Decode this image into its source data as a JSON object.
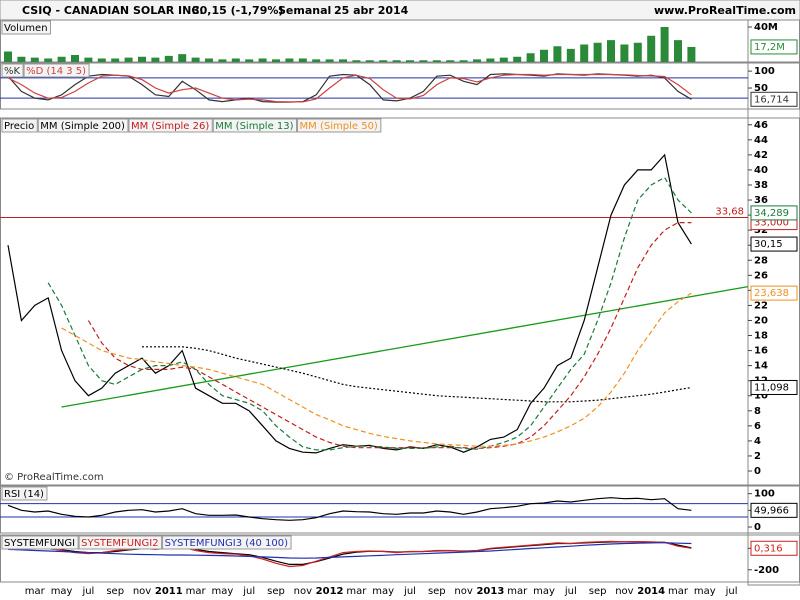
{
  "header": {
    "title": "CSIQ - CANADIAN SOLAR INC.",
    "quote": "30,15 (-1,79%)",
    "period": "Semanal",
    "date": "25 abr 2014",
    "site": "www.ProRealTime.com"
  },
  "chart_data": [
    {
      "type": "bar",
      "title": "Volumen",
      "ylim": [
        0,
        48000000
      ],
      "yticks": [
        {
          "value": 40000000,
          "label": "40M"
        }
      ],
      "series": [
        {
          "name": "Volumen",
          "color": "#2a8a3a",
          "tag": {
            "value": 17200000,
            "label": "17,2M"
          },
          "values": [
            12000000,
            6000000,
            5000000,
            4000000,
            6000000,
            8000000,
            5000000,
            4000000,
            4000000,
            5000000,
            6000000,
            5000000,
            7000000,
            9000000,
            5000000,
            4000000,
            3000000,
            4000000,
            3000000,
            4000000,
            3000000,
            4000000,
            4000000,
            3000000,
            3000000,
            3000000,
            2000000,
            2000000,
            2000000,
            2000000,
            2000000,
            2000000,
            2000000,
            2000000,
            2000000,
            3000000,
            4000000,
            5000000,
            6000000,
            10000000,
            14000000,
            18000000,
            15000000,
            20000000,
            22000000,
            25000000,
            20000000,
            22000000,
            30000000,
            40000000,
            25000000,
            17200000,
            null,
            null,
            null
          ]
        }
      ]
    },
    {
      "type": "line",
      "ylim": [
        -12,
        124
      ],
      "yticks": [
        100,
        50
      ],
      "levels": [
        80,
        20
      ],
      "level_color": "#2233aa",
      "series": [
        {
          "name": "%K",
          "color": "#333333",
          "tag": {
            "value": 16.714,
            "label": "16,714"
          },
          "values": [
            85,
            40,
            20,
            15,
            30,
            60,
            85,
            90,
            88,
            85,
            60,
            30,
            25,
            70,
            45,
            15,
            10,
            15,
            20,
            10,
            8,
            8,
            10,
            30,
            85,
            90,
            88,
            60,
            15,
            12,
            20,
            40,
            85,
            88,
            70,
            60,
            90,
            92,
            90,
            88,
            85,
            92,
            90,
            88,
            92,
            90,
            88,
            85,
            88,
            80,
            40,
            16.714,
            null,
            null,
            null
          ]
        },
        {
          "name": "%D (14 3 5)",
          "color": "#d04040",
          "values": [
            80,
            60,
            35,
            20,
            22,
            40,
            65,
            85,
            88,
            86,
            75,
            50,
            35,
            45,
            50,
            35,
            20,
            15,
            17,
            15,
            10,
            9,
            9,
            18,
            50,
            80,
            88,
            78,
            45,
            20,
            18,
            28,
            60,
            80,
            78,
            68,
            80,
            88,
            90,
            90,
            88,
            90,
            90,
            90,
            90,
            90,
            89,
            87,
            86,
            84,
            60,
            30,
            null,
            null,
            null
          ]
        }
      ]
    },
    {
      "type": "line",
      "ylim": [
        -1.86,
        46.9
      ],
      "yticks": [
        0,
        2,
        4,
        6,
        8,
        10,
        12,
        14,
        16,
        18,
        20,
        22,
        24,
        26,
        28,
        30,
        32,
        34,
        36,
        38,
        40,
        42,
        44,
        46
      ],
      "categories": [
        null,
        null,
        "mar",
        null,
        "may",
        null,
        "jul",
        null,
        "sep",
        null,
        "nov",
        null,
        "2011",
        null,
        "mar",
        null,
        "may",
        null,
        "jul",
        null,
        "sep",
        null,
        "nov",
        null,
        "2012",
        null,
        "mar",
        null,
        "may",
        null,
        "jul",
        null,
        "sep",
        null,
        "nov",
        null,
        "2013",
        null,
        "mar",
        null,
        "may",
        null,
        "jul",
        null,
        "sep",
        null,
        "nov",
        null,
        "2014",
        null,
        "mar",
        null,
        "may",
        null,
        "jul"
      ],
      "level": {
        "value": 33.68,
        "label": "33,68",
        "color": "#c02020"
      },
      "trendline": {
        "from": 8.5,
        "to": 24.5,
        "color": "#1a9a1a"
      },
      "watermark": "© ProRealTime.com",
      "series": [
        {
          "name": "Precio",
          "color": "#000000",
          "style": "solid",
          "tag": {
            "value": 30.15,
            "label": "30,15"
          },
          "values": [
            30,
            20,
            22,
            23,
            16,
            12,
            10,
            11,
            13,
            14,
            15,
            13,
            14,
            16,
            11,
            10,
            9,
            9,
            8,
            6,
            4,
            3,
            2.5,
            2.4,
            3,
            3.5,
            3.3,
            3.4,
            3,
            2.8,
            3.2,
            3,
            3.5,
            3.2,
            2.5,
            3.2,
            4.2,
            4.5,
            5.5,
            9,
            11,
            14,
            15,
            20,
            27,
            34,
            38,
            40,
            40,
            42,
            33,
            30.15,
            null,
            null,
            null
          ]
        },
        {
          "name": "MM (Simple 200)",
          "color": "#000000",
          "style": "dotted",
          "tag": {
            "value": 11.098,
            "label": "11,098"
          },
          "values": [
            null,
            null,
            null,
            null,
            null,
            null,
            null,
            null,
            null,
            null,
            16.5,
            16.5,
            16.5,
            16.5,
            16.3,
            16,
            15.5,
            15,
            14.6,
            14.2,
            13.8,
            13.4,
            13,
            12.5,
            12,
            11.5,
            11.2,
            11,
            10.8,
            10.6,
            10.4,
            10.2,
            10,
            9.9,
            9.8,
            9.7,
            9.6,
            9.5,
            9.4,
            9.3,
            9.2,
            9.2,
            9.2,
            9.3,
            9.4,
            9.6,
            9.8,
            10,
            10.2,
            10.5,
            10.8,
            11.098,
            null,
            null,
            null
          ]
        },
        {
          "name": "MM (Simple 26)",
          "color": "#c02020",
          "style": "dashed",
          "tag": {
            "value": 33,
            "label": "33,000"
          },
          "values": [
            null,
            null,
            null,
            null,
            null,
            null,
            20,
            17,
            15,
            14,
            13.5,
            13.5,
            13.5,
            13.8,
            13.5,
            12.5,
            11.5,
            10.5,
            9.5,
            8.5,
            7.5,
            6.5,
            5.5,
            4.5,
            3.8,
            3.3,
            3.1,
            3.1,
            3.1,
            3.1,
            3.1,
            3.1,
            3.1,
            3.1,
            3.1,
            3,
            3.1,
            3.3,
            3.6,
            4.5,
            6,
            8,
            10,
            12.5,
            15.5,
            19,
            23,
            27,
            30,
            32,
            33,
            33,
            null,
            null,
            null
          ]
        },
        {
          "name": "MM (Simple 13)",
          "color": "#1a7a3a",
          "style": "dashed",
          "tag": {
            "value": 34.289,
            "label": "34,289"
          },
          "values": [
            null,
            null,
            null,
            25,
            22,
            18,
            14,
            12,
            11.5,
            12.5,
            13.5,
            14,
            14,
            14.5,
            13.5,
            11.5,
            10,
            9.5,
            9,
            8,
            6,
            4.5,
            3.2,
            2.8,
            2.8,
            3.1,
            3.3,
            3.3,
            3.2,
            3,
            3,
            3,
            3.2,
            3.3,
            3,
            2.9,
            3.3,
            3.8,
            4.5,
            6,
            8.5,
            11,
            13.5,
            15.5,
            20,
            25,
            31,
            36,
            38,
            39,
            36,
            34.289,
            null,
            null,
            null
          ]
        },
        {
          "name": "MM (Simple 50)",
          "color": "#f09020",
          "style": "dashed",
          "tag": {
            "value": 23.638,
            "label": "23,638"
          },
          "values": [
            null,
            null,
            null,
            null,
            19,
            18,
            17,
            16,
            15.5,
            15,
            14.8,
            14.5,
            14.3,
            14,
            13.8,
            13.5,
            13,
            12.5,
            12,
            11.5,
            10.5,
            9.5,
            8.5,
            7.5,
            6.8,
            6,
            5.5,
            5,
            4.6,
            4.3,
            4,
            3.8,
            3.6,
            3.5,
            3.4,
            3.3,
            3.3,
            3.4,
            3.6,
            4,
            4.5,
            5.2,
            6,
            7,
            8.5,
            10.5,
            13,
            16,
            18.5,
            21,
            22.5,
            23.638,
            null,
            null,
            null
          ]
        }
      ]
    },
    {
      "type": "line",
      "title": "RSI (14)",
      "ylim": [
        -18,
        123
      ],
      "yticks": [
        100,
        50,
        0
      ],
      "levels": [
        70,
        30
      ],
      "level_color": "#2233aa",
      "series": [
        {
          "name": "RSI (14)",
          "color": "#000000",
          "tag": {
            "value": 49.966,
            "label": "49,966"
          },
          "values": [
            65,
            50,
            45,
            48,
            38,
            32,
            30,
            35,
            45,
            50,
            52,
            45,
            48,
            55,
            40,
            35,
            35,
            36,
            30,
            25,
            22,
            20,
            22,
            28,
            40,
            48,
            46,
            45,
            40,
            38,
            42,
            42,
            48,
            45,
            38,
            45,
            55,
            58,
            62,
            70,
            72,
            78,
            75,
            80,
            85,
            88,
            85,
            86,
            82,
            85,
            55,
            49.966,
            null,
            null,
            null
          ]
        }
      ]
    },
    {
      "type": "line",
      "ylim": [
        -314,
        124
      ],
      "yticks": [
        0,
        -200
      ],
      "series": [
        {
          "name": "SYSTEMFUNGI",
          "color": "#000000",
          "values": [
            10,
            0,
            -5,
            -5,
            -15,
            -30,
            -40,
            -40,
            -30,
            -15,
            -5,
            -5,
            0,
            5,
            -10,
            -30,
            -40,
            -50,
            -60,
            -85,
            -120,
            -150,
            -150,
            -125,
            -90,
            -55,
            -35,
            -28,
            -28,
            -35,
            -32,
            -30,
            -24,
            -22,
            -26,
            -22,
            -5,
            5,
            15,
            25,
            35,
            45,
            45,
            50,
            55,
            60,
            60,
            60,
            58,
            55,
            30,
            5,
            null,
            null,
            null
          ]
        },
        {
          "name": "SYSTEMFUNGI2",
          "color": "#d02020",
          "tag": {
            "value": 0.316,
            "label": "0,316"
          },
          "values": [
            20,
            -10,
            -5,
            0,
            -20,
            -40,
            -50,
            -40,
            -20,
            -10,
            0,
            -10,
            0,
            10,
            -20,
            -40,
            -50,
            -55,
            -70,
            -100,
            -140,
            -170,
            -160,
            -120,
            -80,
            -40,
            -30,
            -25,
            -30,
            -40,
            -30,
            -30,
            -20,
            -20,
            -30,
            -20,
            0,
            10,
            20,
            30,
            40,
            50,
            45,
            55,
            60,
            65,
            60,
            62,
            60,
            55,
            20,
            0.316,
            null,
            null,
            null
          ]
        },
        {
          "name": "SYSTEMFUNGI3 (40 100)",
          "color": "#2030b0",
          "values": [
            -10,
            -15,
            -20,
            -25,
            -30,
            -35,
            -40,
            -45,
            -50,
            -55,
            -58,
            -60,
            -62,
            -62,
            -64,
            -66,
            -68,
            -72,
            -75,
            -80,
            -85,
            -90,
            -92,
            -90,
            -85,
            -80,
            -75,
            -70,
            -65,
            -60,
            -55,
            -50,
            -45,
            -40,
            -35,
            -30,
            -25,
            -18,
            -10,
            -2,
            5,
            12,
            20,
            28,
            35,
            40,
            45,
            48,
            50,
            52,
            48,
            45,
            null,
            null,
            null
          ]
        }
      ]
    }
  ]
}
